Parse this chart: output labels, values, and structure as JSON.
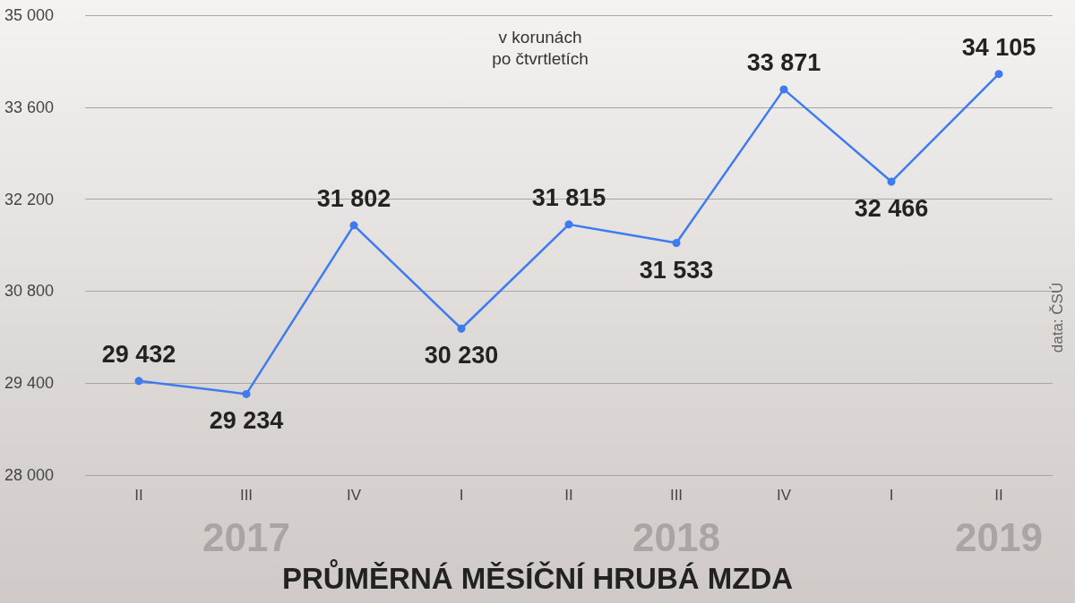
{
  "chart_data": {
    "type": "line",
    "title": "PRŮMĚRNÁ MĚSÍČNÍ HRUBÁ MZDA",
    "subtitle": "v korunách\npo čtvrtletích",
    "categories": [
      "II",
      "III",
      "IV",
      "I",
      "II",
      "III",
      "IV",
      "I",
      "II"
    ],
    "series": [
      {
        "color": "#3f7bf0",
        "values": [
          29432,
          29234,
          31802,
          30230,
          31815,
          31533,
          33871,
          32466,
          34105
        ],
        "value_labels": [
          "29 432",
          "29 234",
          "31 802",
          "30 230",
          "31 815",
          "31 533",
          "33 871",
          "32 466",
          "34 105"
        ]
      }
    ],
    "ylim": [
      28000,
      35000
    ],
    "yticks": [
      {
        "value": 28000,
        "label": "28 000"
      },
      {
        "value": 29400,
        "label": "29 400"
      },
      {
        "value": 30800,
        "label": "30 800"
      },
      {
        "value": 32200,
        "label": "32 200"
      },
      {
        "value": 33600,
        "label": "33 600"
      },
      {
        "value": 35000,
        "label": "35 000"
      }
    ],
    "annotations": [
      "2017",
      "2018",
      "2019",
      "data: ČSÚ"
    ],
    "grid": "y",
    "marker": "circle",
    "line_style": "solid"
  }
}
